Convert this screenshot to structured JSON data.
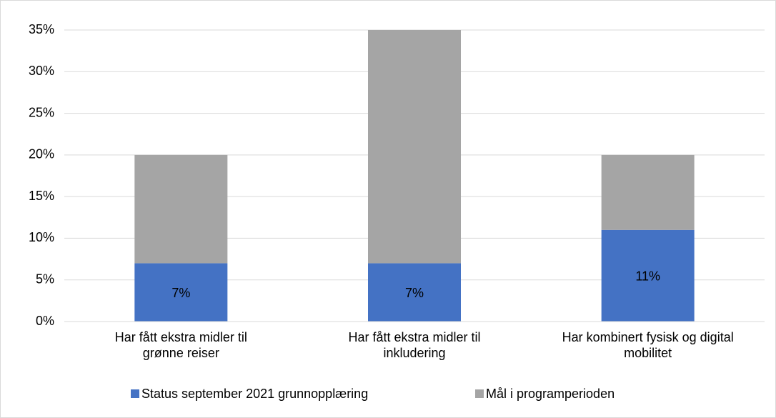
{
  "chart_data": {
    "type": "stacked_bar",
    "categories": [
      "Har fått ekstra midler til\ngrønne reiser",
      "Har fått ekstra midler til\ninkludering",
      "Har kombinert fysisk og digital\nmobilitet"
    ],
    "series": [
      {
        "name": "Status september 2021 grunnopplæring",
        "color": "#4472c4",
        "values": [
          7,
          7,
          11
        ],
        "value_labels": [
          "7%",
          "7%",
          "11%"
        ]
      },
      {
        "name": "Mål i programperioden",
        "color": "#a5a5a5",
        "values": [
          13,
          28,
          9
        ]
      }
    ],
    "ylim": [
      0,
      35
    ],
    "yticks": [
      {
        "value": 0,
        "label": "0%"
      },
      {
        "value": 5,
        "label": "5%"
      },
      {
        "value": 10,
        "label": "10%"
      },
      {
        "value": 15,
        "label": "15%"
      },
      {
        "value": 20,
        "label": "20%"
      },
      {
        "value": 25,
        "label": "25%"
      },
      {
        "value": 30,
        "label": "30%"
      },
      {
        "value": 35,
        "label": "35%"
      }
    ],
    "grid": true,
    "legend": "bottom"
  }
}
